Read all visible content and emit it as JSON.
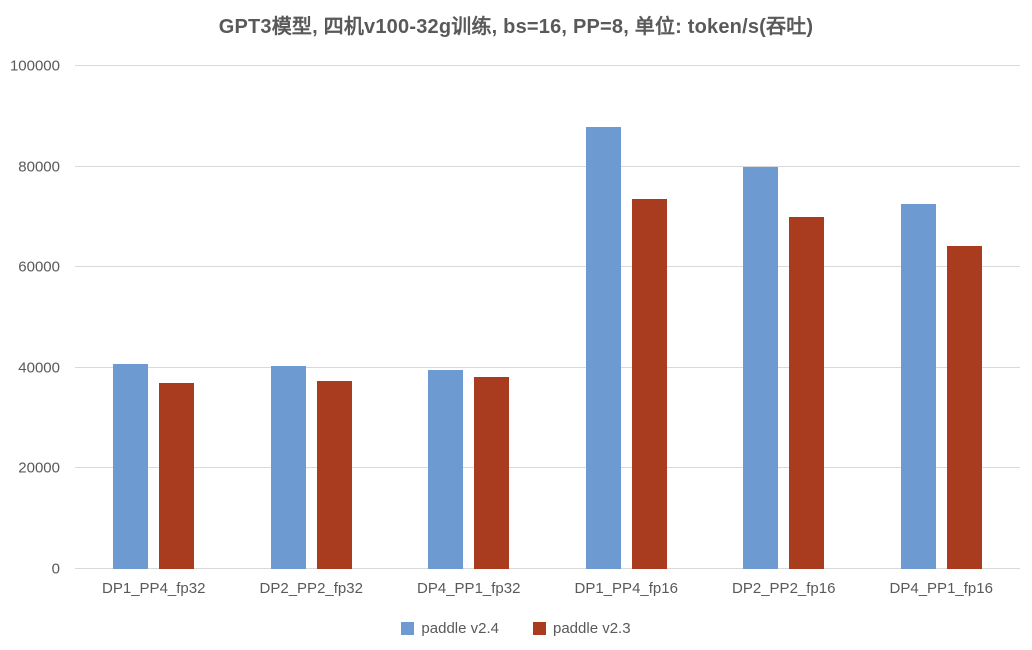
{
  "title": "GPT3模型, 四机v100-32g训练, bs=16, PP=8, 单位: token/s(吞吐)",
  "chart_data": {
    "type": "bar",
    "title": "GPT3模型, 四机v100-32g训练, bs=16, PP=8, 单位: token/s(吞吐)",
    "categories": [
      "DP1_PP4_fp32",
      "DP2_PP2_fp32",
      "DP4_PP1_fp32",
      "DP1_PP4_fp16",
      "DP2_PP2_fp16",
      "DP4_PP1_fp16"
    ],
    "series": [
      {
        "name": "paddle v2.4",
        "color": "#6D9BD1",
        "values": [
          40700,
          40400,
          39600,
          87900,
          79900,
          72500
        ]
      },
      {
        "name": "paddle v2.3",
        "color": "#A93C1E",
        "values": [
          37000,
          37400,
          38200,
          73500,
          70000,
          64300
        ]
      }
    ],
    "xlabel": "",
    "ylabel": "",
    "ylim": [
      0,
      100000
    ],
    "yticks": [
      0,
      20000,
      40000,
      60000,
      80000,
      100000
    ],
    "grid": true,
    "legend_position": "bottom"
  },
  "colors": {
    "background": "#FFFFFF",
    "title_text": "#595959",
    "axis_text": "#595959",
    "gridline": "#D9D9D9",
    "series_v24": "#6D9BD1",
    "series_v23": "#A93C1E"
  }
}
